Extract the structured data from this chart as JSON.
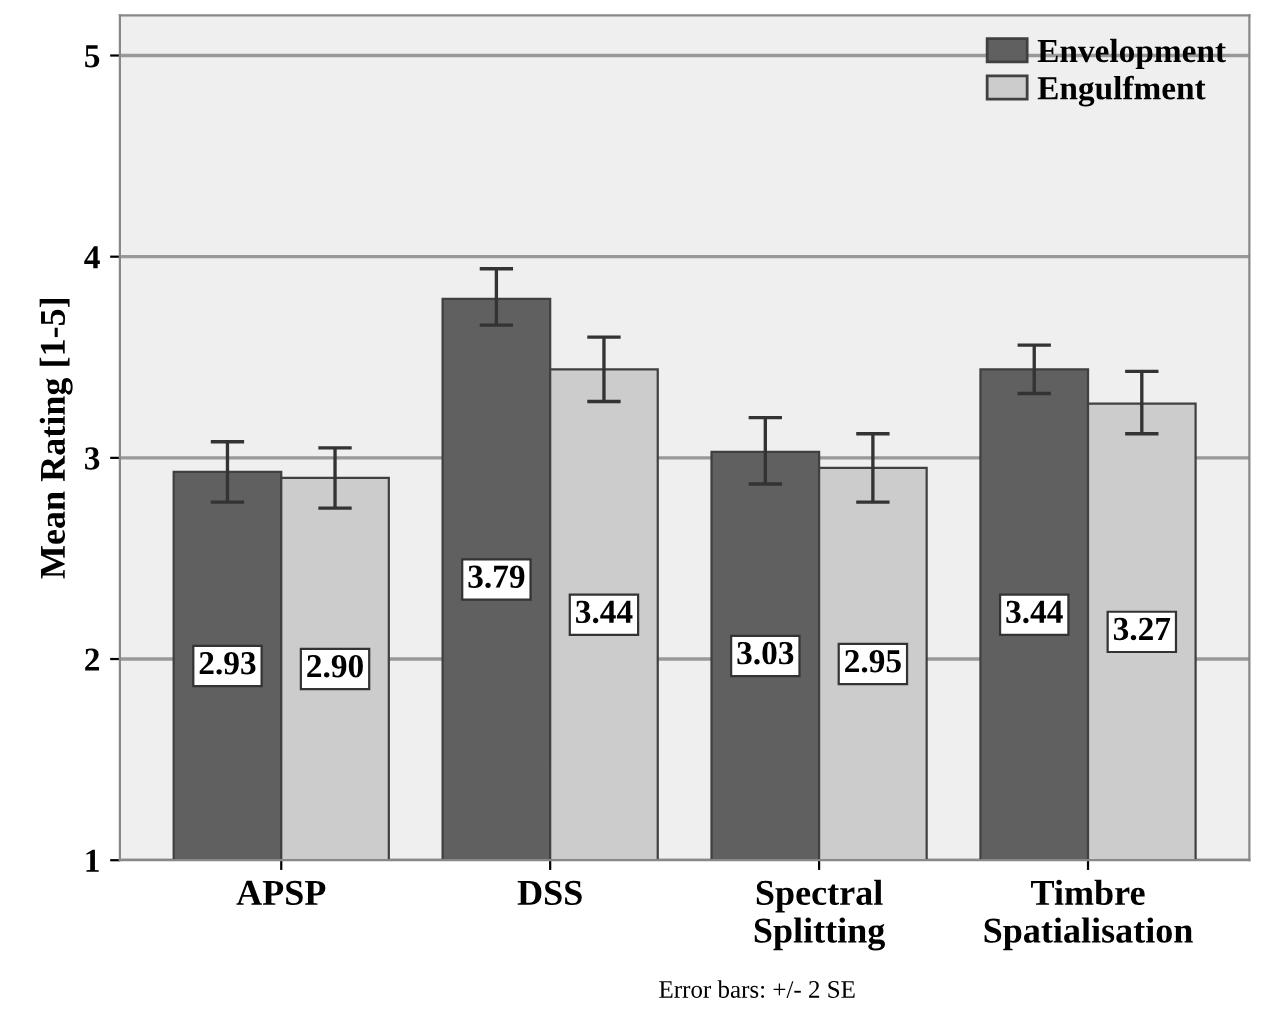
{
  "chart_data": {
    "type": "bar",
    "ylabel": "Mean Rating [1-5]",
    "categories": [
      "APSP",
      "DSS",
      "Spectral\nSplitting",
      "Timbre\nSpatialisation"
    ],
    "series": [
      {
        "name": "Envelopment",
        "color": "#606060",
        "values": [
          2.93,
          3.79,
          3.03,
          3.44
        ],
        "value_labels": [
          "2.93",
          "3.79",
          "3.03",
          "3.44"
        ],
        "errors": [
          [
            2.78,
            3.08
          ],
          [
            3.66,
            3.94
          ],
          [
            2.87,
            3.2
          ],
          [
            3.32,
            3.56
          ]
        ]
      },
      {
        "name": "Engulfment",
        "color": "#cccccc",
        "values": [
          2.9,
          3.44,
          2.95,
          3.27
        ],
        "value_labels": [
          "2.90",
          "3.44",
          "2.95",
          "3.27"
        ],
        "errors": [
          [
            2.75,
            3.05
          ],
          [
            3.28,
            3.6
          ],
          [
            2.78,
            3.12
          ],
          [
            3.12,
            3.43
          ]
        ]
      }
    ],
    "ylim": [
      1,
      5.2
    ],
    "yticks": [
      1,
      2,
      3,
      4,
      5
    ],
    "grid": "y",
    "legend": "top right",
    "annotations": [
      "Error bars: +/- 2 SE"
    ]
  }
}
